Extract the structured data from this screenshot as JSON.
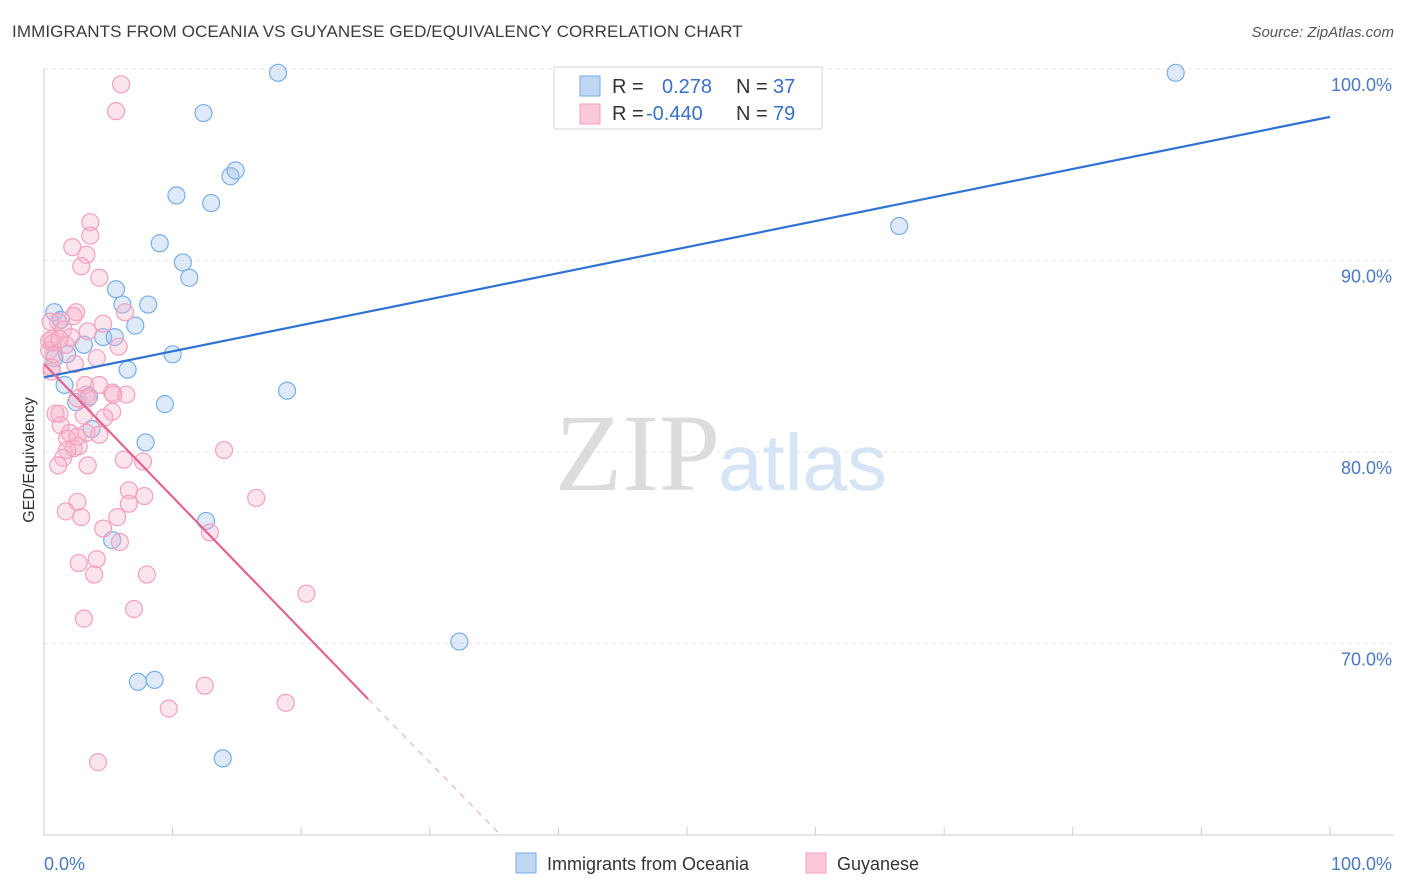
{
  "title": "IMMIGRANTS FROM OCEANIA VS GUYANESE GED/EQUIVALENCY CORRELATION CHART",
  "source": "Source: ZipAtlas.com",
  "chart_data": {
    "type": "scatter",
    "title": "IMMIGRANTS FROM OCEANIA VS GUYANESE GED/EQUIVALENCY CORRELATION CHART",
    "ylabel": "GED/Equivalency",
    "xlabel": "",
    "xlim": [
      0,
      100
    ],
    "ylim": [
      60,
      100
    ],
    "x_tick_labels": [
      "0.0%",
      "100.0%"
    ],
    "y_tick_labels": [
      "100.0%",
      "90.0%",
      "80.0%",
      "70.0%"
    ],
    "y_tick_values": [
      100,
      90,
      80,
      70
    ],
    "grid": true,
    "watermark": "ZIPatlas",
    "legend_top": [
      {
        "r_label": "R =",
        "r_value": "0.278",
        "n_label": "N =",
        "n_value": "37"
      },
      {
        "r_label": "R =",
        "r_value": "-0.440",
        "n_label": "N =",
        "n_value": "79"
      }
    ],
    "series": [
      {
        "name": "Immigrants from Oceania",
        "color": "#7aaee8",
        "line_color": "#2f72d4",
        "trend": {
          "x": [
            0,
            100
          ],
          "y": [
            83.9,
            97.5
          ]
        },
        "points": [
          [
            18.2,
            99.8
          ],
          [
            88.0,
            99.8
          ],
          [
            12.4,
            97.7
          ],
          [
            14.5,
            94.4
          ],
          [
            14.9,
            94.7
          ],
          [
            10.3,
            93.4
          ],
          [
            13.0,
            93.0
          ],
          [
            66.5,
            91.8
          ],
          [
            9.0,
            90.9
          ],
          [
            10.8,
            89.9
          ],
          [
            11.3,
            89.1
          ],
          [
            5.6,
            88.5
          ],
          [
            6.1,
            87.7
          ],
          [
            8.1,
            87.7
          ],
          [
            0.8,
            87.3
          ],
          [
            1.3,
            86.9
          ],
          [
            7.1,
            86.6
          ],
          [
            4.6,
            86.0
          ],
          [
            5.5,
            86.0
          ],
          [
            3.1,
            85.6
          ],
          [
            1.8,
            85.1
          ],
          [
            10.0,
            85.1
          ],
          [
            0.8,
            84.9
          ],
          [
            6.5,
            84.3
          ],
          [
            1.6,
            83.5
          ],
          [
            18.9,
            83.2
          ],
          [
            9.4,
            82.5
          ],
          [
            2.5,
            82.6
          ],
          [
            3.5,
            82.9
          ],
          [
            3.7,
            81.2
          ],
          [
            7.9,
            80.5
          ],
          [
            12.6,
            76.4
          ],
          [
            5.3,
            75.4
          ],
          [
            32.3,
            70.1
          ],
          [
            7.3,
            68.0
          ],
          [
            8.6,
            68.1
          ],
          [
            13.9,
            64.0
          ]
        ]
      },
      {
        "name": "Guyanese",
        "color": "#f4a0bc",
        "line_color": "#e06590",
        "trend": {
          "x": [
            0,
            25.2
          ],
          "y": [
            84.6,
            67.1
          ]
        },
        "trend_ext": {
          "x": [
            25.2,
            35.5
          ],
          "y": [
            67.1,
            60.0
          ]
        },
        "points": [
          [
            6.0,
            99.2
          ],
          [
            5.6,
            97.8
          ],
          [
            3.6,
            92.0
          ],
          [
            3.6,
            91.3
          ],
          [
            2.2,
            90.7
          ],
          [
            3.3,
            90.3
          ],
          [
            2.9,
            89.7
          ],
          [
            4.3,
            89.1
          ],
          [
            6.3,
            87.3
          ],
          [
            2.5,
            87.3
          ],
          [
            2.3,
            87.1
          ],
          [
            1.1,
            86.8
          ],
          [
            0.5,
            86.8
          ],
          [
            4.6,
            86.7
          ],
          [
            1.5,
            86.4
          ],
          [
            3.4,
            86.3
          ],
          [
            2.1,
            86.0
          ],
          [
            0.4,
            85.8
          ],
          [
            0.7,
            85.7
          ],
          [
            1.7,
            85.6
          ],
          [
            5.8,
            85.5
          ],
          [
            0.4,
            85.3
          ],
          [
            0.8,
            85.1
          ],
          [
            4.1,
            84.9
          ],
          [
            0.6,
            84.4
          ],
          [
            0.6,
            84.2
          ],
          [
            3.2,
            83.5
          ],
          [
            4.3,
            83.5
          ],
          [
            3.3,
            83.0
          ],
          [
            2.6,
            82.8
          ],
          [
            5.3,
            83.1
          ],
          [
            6.4,
            83.0
          ],
          [
            3.4,
            82.8
          ],
          [
            1.2,
            82.0
          ],
          [
            0.9,
            82.0
          ],
          [
            3.1,
            81.9
          ],
          [
            5.3,
            82.1
          ],
          [
            4.7,
            81.8
          ],
          [
            1.3,
            81.4
          ],
          [
            2.0,
            81.0
          ],
          [
            3.3,
            81.0
          ],
          [
            4.3,
            80.9
          ],
          [
            1.8,
            80.7
          ],
          [
            2.7,
            80.3
          ],
          [
            2.3,
            80.2
          ],
          [
            1.8,
            80.1
          ],
          [
            1.5,
            79.7
          ],
          [
            1.1,
            79.3
          ],
          [
            3.4,
            79.3
          ],
          [
            6.2,
            79.6
          ],
          [
            7.7,
            79.5
          ],
          [
            14.0,
            80.1
          ],
          [
            6.6,
            78.0
          ],
          [
            2.6,
            77.4
          ],
          [
            7.8,
            77.7
          ],
          [
            16.5,
            77.6
          ],
          [
            1.7,
            76.9
          ],
          [
            6.6,
            77.3
          ],
          [
            5.7,
            76.6
          ],
          [
            2.9,
            76.6
          ],
          [
            4.6,
            76.0
          ],
          [
            5.9,
            75.3
          ],
          [
            12.9,
            75.8
          ],
          [
            4.1,
            74.4
          ],
          [
            2.7,
            74.2
          ],
          [
            3.9,
            73.6
          ],
          [
            8.0,
            73.6
          ],
          [
            20.4,
            72.6
          ],
          [
            7.0,
            71.8
          ],
          [
            3.1,
            71.3
          ],
          [
            12.5,
            67.8
          ],
          [
            9.7,
            66.6
          ],
          [
            18.8,
            66.9
          ],
          [
            4.2,
            63.8
          ],
          [
            0.6,
            85.9
          ],
          [
            1.2,
            85.9
          ],
          [
            2.4,
            84.6
          ],
          [
            5.4,
            83.0
          ],
          [
            2.6,
            80.8
          ]
        ]
      }
    ]
  }
}
